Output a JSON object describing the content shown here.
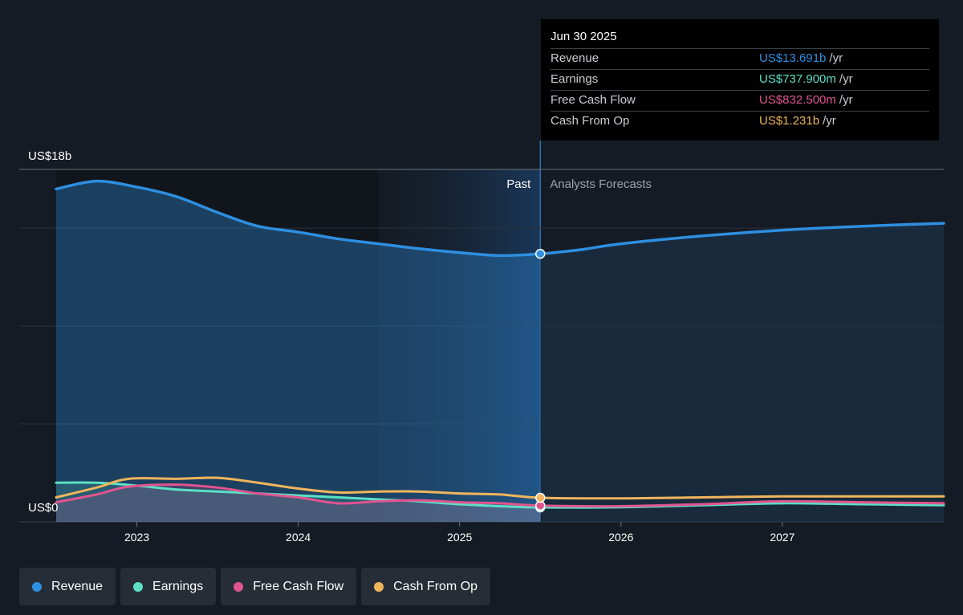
{
  "tooltip": {
    "date": "Jun 30 2025",
    "rows": [
      {
        "name": "Revenue",
        "value": "US$13.691b",
        "unit": "/yr",
        "color": "#2e8fe0"
      },
      {
        "name": "Earnings",
        "value": "US$737.900m",
        "unit": "/yr",
        "color": "#5ce0c6"
      },
      {
        "name": "Free Cash Flow",
        "value": "US$832.500m",
        "unit": "/yr",
        "color": "#e0548f"
      },
      {
        "name": "Cash From Op",
        "value": "US$1.231b",
        "unit": "/yr",
        "color": "#f0b55c"
      }
    ]
  },
  "legend": [
    {
      "label": "Revenue",
      "color": "#2e8fe0"
    },
    {
      "label": "Earnings",
      "color": "#5ce0c6"
    },
    {
      "label": "Free Cash Flow",
      "color": "#e0548f"
    },
    {
      "label": "Cash From Op",
      "color": "#f0b55c"
    }
  ],
  "chart_data": {
    "type": "line",
    "y_top_label": "US$18b",
    "y_bottom_label": "US$0",
    "ylim": [
      0,
      18
    ],
    "y_unit": "US$ billions",
    "x_ticks": [
      2023,
      2024,
      2025,
      2026,
      2027
    ],
    "x_range": [
      2022.5,
      2028.0
    ],
    "past_label": "Past",
    "forecast_label": "Analysts Forecasts",
    "divider_x": 2025.5,
    "highlight_start_x": 2024.5,
    "grid": true,
    "series": [
      {
        "name": "Revenue",
        "color": "#2e8fe0",
        "fill": true,
        "points": [
          [
            2022.5,
            17.0
          ],
          [
            2022.75,
            17.4
          ],
          [
            2023.0,
            17.1
          ],
          [
            2023.25,
            16.6
          ],
          [
            2023.5,
            15.8
          ],
          [
            2023.75,
            15.1
          ],
          [
            2024.0,
            14.8
          ],
          [
            2024.25,
            14.45
          ],
          [
            2024.5,
            14.2
          ],
          [
            2024.75,
            13.95
          ],
          [
            2025.0,
            13.75
          ],
          [
            2025.25,
            13.6
          ],
          [
            2025.5,
            13.69
          ],
          [
            2025.75,
            13.9
          ],
          [
            2026.0,
            14.2
          ],
          [
            2026.5,
            14.6
          ],
          [
            2027.0,
            14.9
          ],
          [
            2027.5,
            15.1
          ],
          [
            2028.0,
            15.25
          ]
        ]
      },
      {
        "name": "Earnings",
        "color": "#5ce0c6",
        "fill": true,
        "points": [
          [
            2022.5,
            2.0
          ],
          [
            2022.75,
            2.0
          ],
          [
            2023.0,
            1.85
          ],
          [
            2023.25,
            1.65
          ],
          [
            2023.5,
            1.55
          ],
          [
            2023.75,
            1.45
          ],
          [
            2024.0,
            1.35
          ],
          [
            2024.25,
            1.25
          ],
          [
            2024.5,
            1.15
          ],
          [
            2024.75,
            1.05
          ],
          [
            2025.0,
            0.9
          ],
          [
            2025.25,
            0.8
          ],
          [
            2025.5,
            0.74
          ],
          [
            2026.0,
            0.75
          ],
          [
            2026.5,
            0.85
          ],
          [
            2027.0,
            0.95
          ],
          [
            2027.5,
            0.9
          ],
          [
            2028.0,
            0.85
          ]
        ]
      },
      {
        "name": "Free Cash Flow",
        "color": "#e0548f",
        "fill": true,
        "points": [
          [
            2022.5,
            1.0
          ],
          [
            2022.75,
            1.4
          ],
          [
            2022.95,
            1.8
          ],
          [
            2023.25,
            1.9
          ],
          [
            2023.5,
            1.75
          ],
          [
            2023.75,
            1.45
          ],
          [
            2024.0,
            1.25
          ],
          [
            2024.25,
            0.95
          ],
          [
            2024.5,
            1.05
          ],
          [
            2024.75,
            1.1
          ],
          [
            2025.0,
            1.0
          ],
          [
            2025.25,
            0.95
          ],
          [
            2025.5,
            0.83
          ],
          [
            2026.0,
            0.8
          ],
          [
            2026.5,
            0.9
          ],
          [
            2027.0,
            1.05
          ],
          [
            2027.5,
            1.0
          ],
          [
            2028.0,
            0.95
          ]
        ]
      },
      {
        "name": "Cash From Op",
        "color": "#f0b55c",
        "fill": false,
        "points": [
          [
            2022.5,
            1.25
          ],
          [
            2022.75,
            1.75
          ],
          [
            2022.95,
            2.2
          ],
          [
            2023.25,
            2.2
          ],
          [
            2023.5,
            2.25
          ],
          [
            2023.75,
            2.0
          ],
          [
            2024.0,
            1.7
          ],
          [
            2024.25,
            1.5
          ],
          [
            2024.5,
            1.55
          ],
          [
            2024.75,
            1.55
          ],
          [
            2025.0,
            1.45
          ],
          [
            2025.25,
            1.4
          ],
          [
            2025.5,
            1.23
          ],
          [
            2026.0,
            1.2
          ],
          [
            2026.5,
            1.25
          ],
          [
            2027.0,
            1.3
          ],
          [
            2027.5,
            1.3
          ],
          [
            2028.0,
            1.3
          ]
        ]
      }
    ]
  }
}
